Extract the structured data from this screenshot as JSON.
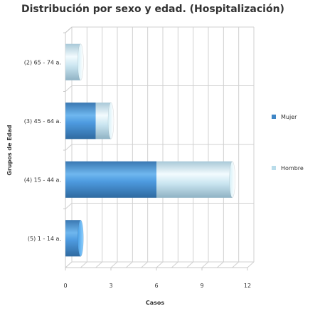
{
  "chart_data": {
    "type": "bar",
    "orientation": "horizontal",
    "stacked": true,
    "title": "Distribución por sexo y edad. (Hospitalización)",
    "xlabel": "Casos",
    "ylabel": "Grupos de Edad",
    "categories": [
      "(2) 65 - 74 a.",
      "(3) 45 - 64 a.",
      "(4) 15 - 44 a.",
      "(5) 1 - 14 a."
    ],
    "series": [
      {
        "name": "Mujer",
        "values": [
          0,
          2,
          6,
          1
        ],
        "color": "#3f86c6"
      },
      {
        "name": "Hombre",
        "values": [
          1,
          1,
          5,
          0
        ],
        "color": "#b9dcea"
      }
    ],
    "xlim": [
      0,
      12
    ],
    "xticks": [
      0,
      3,
      6,
      9,
      12
    ],
    "grid": true,
    "legend_position": "right"
  }
}
